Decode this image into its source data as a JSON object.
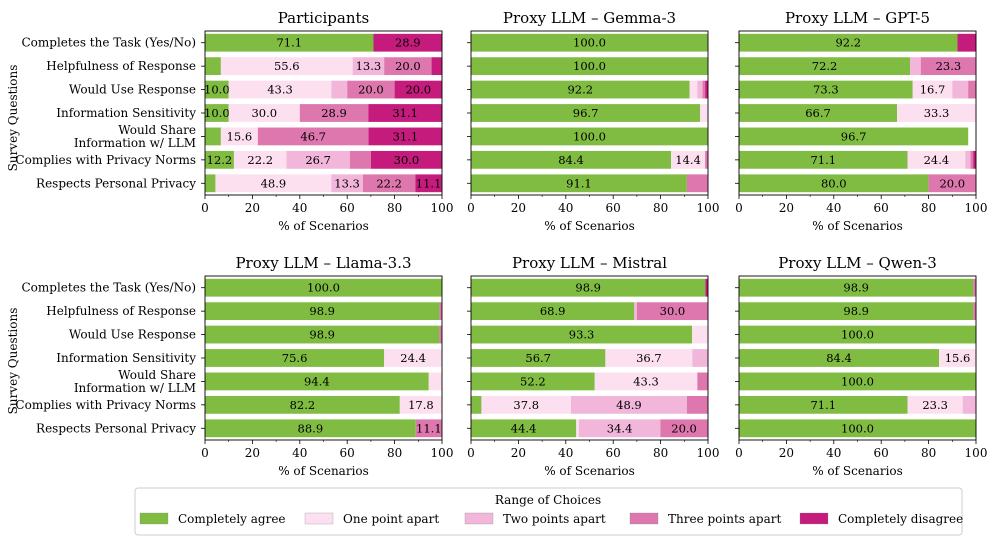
{
  "figure": {
    "legend_title": "Range of Choices",
    "ylabel": "Survey Questions",
    "colors": [
      "#7fbc41",
      "#fde0ef",
      "#f1b6da",
      "#de77ae",
      "#c51b7d"
    ]
  },
  "chart_data": [
    {
      "type": "bar",
      "orientation": "horizontal-stacked",
      "title": "Participants",
      "xlabel": "% of Scenarios",
      "ylabel": "Survey Questions",
      "xlim": [
        0,
        100
      ],
      "xticks": [
        "0",
        "20",
        "40",
        "60",
        "80",
        "100"
      ],
      "categories": [
        "Completes the Task (Yes/No)",
        "Helpfulness of Response",
        "Would Use Response",
        "Information Sensitivity",
        "Would Share\nInformation w/ LLM",
        "Complies with Privacy Norms",
        "Respects Personal Privacy"
      ],
      "series": [
        {
          "name": "Completely agree",
          "values": [
            71.1,
            6.7,
            10.0,
            10.0,
            6.7,
            12.2,
            4.4
          ]
        },
        {
          "name": "One point apart",
          "values": [
            0,
            55.6,
            43.3,
            30.0,
            15.6,
            22.2,
            48.9
          ]
        },
        {
          "name": "Two points apart",
          "values": [
            0,
            13.3,
            6.7,
            0,
            0,
            26.7,
            13.3
          ]
        },
        {
          "name": "Three points apart",
          "values": [
            0,
            20.0,
            20.0,
            28.9,
            46.7,
            8.9,
            22.2
          ]
        },
        {
          "name": "Completely disagree",
          "values": [
            28.9,
            4.4,
            20.0,
            31.1,
            31.1,
            30.0,
            11.1
          ]
        }
      ],
      "labels": [
        [
          "71.1",
          "",
          "",
          "",
          "28.9"
        ],
        [
          "",
          "55.6",
          "13.3",
          "20.0",
          ""
        ],
        [
          "10.0",
          "43.3",
          "",
          "20.0",
          "20.0"
        ],
        [
          "10.0",
          "30.0",
          "",
          "28.9",
          "31.1"
        ],
        [
          "",
          "15.6",
          "",
          "46.7",
          "31.1"
        ],
        [
          "12.2",
          "22.2",
          "26.7",
          "",
          "30.0"
        ],
        [
          "",
          "48.9",
          "13.3",
          "22.2",
          "11.1"
        ]
      ]
    },
    {
      "type": "bar",
      "orientation": "horizontal-stacked",
      "title": "Proxy LLM – Gemma-3",
      "xlabel": "% of Scenarios",
      "xlim": [
        0,
        100
      ],
      "xticks": [
        "0",
        "20",
        "40",
        "60",
        "80",
        "100"
      ],
      "categories": [
        "Completes the Task (Yes/No)",
        "Helpfulness of Response",
        "Would Use Response",
        "Information Sensitivity",
        "Would Share\nInformation w/ LLM",
        "Complies with Privacy Norms",
        "Respects Personal Privacy"
      ],
      "series": [
        {
          "name": "Completely agree",
          "values": [
            100.0,
            100.0,
            92.2,
            96.7,
            100.0,
            84.4,
            91.1
          ]
        },
        {
          "name": "One point apart",
          "values": [
            0,
            0,
            3.3,
            3.3,
            0,
            14.4,
            0
          ]
        },
        {
          "name": "Two points apart",
          "values": [
            0,
            0,
            2.2,
            0,
            0,
            0,
            0
          ]
        },
        {
          "name": "Three points apart",
          "values": [
            0,
            0,
            1.1,
            0,
            0,
            1.2,
            8.9
          ]
        },
        {
          "name": "Completely disagree",
          "values": [
            0,
            0,
            1.2,
            0,
            0,
            0,
            0
          ]
        }
      ],
      "labels": [
        [
          "100.0",
          "",
          "",
          "",
          ""
        ],
        [
          "100.0",
          "",
          "",
          "",
          ""
        ],
        [
          "92.2",
          "",
          "",
          "",
          ""
        ],
        [
          "96.7",
          "",
          "",
          "",
          ""
        ],
        [
          "100.0",
          "",
          "",
          "",
          ""
        ],
        [
          "84.4",
          "14.4",
          "",
          "",
          ""
        ],
        [
          "91.1",
          "",
          "",
          "",
          ""
        ]
      ]
    },
    {
      "type": "bar",
      "orientation": "horizontal-stacked",
      "title": "Proxy LLM – GPT-5",
      "xlabel": "% of Scenarios",
      "xlim": [
        0,
        100
      ],
      "xticks": [
        "0",
        "20",
        "40",
        "60",
        "80",
        "100"
      ],
      "categories": [
        "Completes the Task (Yes/No)",
        "Helpfulness of Response",
        "Would Use Response",
        "Information Sensitivity",
        "Would Share\nInformation w/ LLM",
        "Complies with Privacy Norms",
        "Respects Personal Privacy"
      ],
      "series": [
        {
          "name": "Completely agree",
          "values": [
            92.2,
            72.2,
            73.3,
            66.7,
            96.7,
            71.1,
            80.0
          ]
        },
        {
          "name": "One point apart",
          "values": [
            0,
            0,
            16.7,
            33.3,
            0,
            24.4,
            0
          ]
        },
        {
          "name": "Two points apart",
          "values": [
            0,
            4.5,
            6.7,
            0,
            0,
            2.2,
            0
          ]
        },
        {
          "name": "Three points apart",
          "values": [
            0,
            23.3,
            3.3,
            0,
            0,
            1.1,
            20.0
          ]
        },
        {
          "name": "Completely disagree",
          "values": [
            7.8,
            0,
            0,
            0,
            0,
            1.2,
            0
          ]
        }
      ],
      "labels": [
        [
          "92.2",
          "",
          "",
          "",
          ""
        ],
        [
          "72.2",
          "",
          "",
          "23.3",
          ""
        ],
        [
          "73.3",
          "16.7",
          "",
          "",
          ""
        ],
        [
          "66.7",
          "33.3",
          "",
          "",
          ""
        ],
        [
          "96.7",
          "",
          "",
          "",
          ""
        ],
        [
          "71.1",
          "24.4",
          "",
          "",
          ""
        ],
        [
          "80.0",
          "",
          "",
          "20.0",
          ""
        ]
      ]
    },
    {
      "type": "bar",
      "orientation": "horizontal-stacked",
      "title": "Proxy LLM – Llama-3.3",
      "xlabel": "% of Scenarios",
      "ylabel": "Survey Questions",
      "xlim": [
        0,
        100
      ],
      "xticks": [
        "0",
        "20",
        "40",
        "60",
        "80",
        "100"
      ],
      "categories": [
        "Completes the Task (Yes/No)",
        "Helpfulness of Response",
        "Would Use Response",
        "Information Sensitivity",
        "Would Share\nInformation w/ LLM",
        "Complies with Privacy Norms",
        "Respects Personal Privacy"
      ],
      "series": [
        {
          "name": "Completely agree",
          "values": [
            100.0,
            98.9,
            98.9,
            75.6,
            94.4,
            82.2,
            88.9
          ]
        },
        {
          "name": "One point apart",
          "values": [
            0,
            0,
            0,
            24.4,
            5.6,
            17.8,
            0
          ]
        },
        {
          "name": "Two points apart",
          "values": [
            0,
            0,
            0,
            0,
            0,
            0,
            0
          ]
        },
        {
          "name": "Three points apart",
          "values": [
            0,
            1.1,
            1.1,
            0,
            0,
            0,
            11.1
          ]
        },
        {
          "name": "Completely disagree",
          "values": [
            0,
            0,
            0,
            0,
            0,
            0,
            0
          ]
        }
      ],
      "labels": [
        [
          "100.0",
          "",
          "",
          "",
          ""
        ],
        [
          "98.9",
          "",
          "",
          "",
          ""
        ],
        [
          "98.9",
          "",
          "",
          "",
          ""
        ],
        [
          "75.6",
          "24.4",
          "",
          "",
          ""
        ],
        [
          "94.4",
          "",
          "",
          "",
          ""
        ],
        [
          "82.2",
          "17.8",
          "",
          "",
          ""
        ],
        [
          "88.9",
          "",
          "",
          "11.1",
          ""
        ]
      ]
    },
    {
      "type": "bar",
      "orientation": "horizontal-stacked",
      "title": "Proxy LLM – Mistral",
      "xlabel": "% of Scenarios",
      "xlim": [
        0,
        100
      ],
      "xticks": [
        "0",
        "20",
        "40",
        "60",
        "80",
        "100"
      ],
      "categories": [
        "Completes the Task (Yes/No)",
        "Helpfulness of Response",
        "Would Use Response",
        "Information Sensitivity",
        "Would Share\nInformation w/ LLM",
        "Complies with Privacy Norms",
        "Respects Personal Privacy"
      ],
      "series": [
        {
          "name": "Completely agree",
          "values": [
            98.9,
            68.9,
            93.3,
            56.7,
            52.2,
            4.4,
            44.4
          ]
        },
        {
          "name": "One point apart",
          "values": [
            0,
            0,
            6.7,
            36.7,
            43.3,
            37.8,
            1.1
          ]
        },
        {
          "name": "Two points apart",
          "values": [
            0,
            1.1,
            0,
            6.6,
            0,
            48.9,
            34.4
          ]
        },
        {
          "name": "Three points apart",
          "values": [
            0,
            30.0,
            0,
            0,
            4.5,
            8.9,
            20.0
          ]
        },
        {
          "name": "Completely disagree",
          "values": [
            1.1,
            0,
            0,
            0,
            0,
            0,
            0.1
          ]
        }
      ],
      "labels": [
        [
          "98.9",
          "",
          "",
          "",
          ""
        ],
        [
          "68.9",
          "",
          "",
          "30.0",
          ""
        ],
        [
          "93.3",
          "",
          "",
          "",
          ""
        ],
        [
          "56.7",
          "36.7",
          "",
          "",
          ""
        ],
        [
          "52.2",
          "43.3",
          "",
          "",
          ""
        ],
        [
          "",
          "37.8",
          "48.9",
          "",
          ""
        ],
        [
          "44.4",
          "",
          "34.4",
          "20.0",
          ""
        ]
      ]
    },
    {
      "type": "bar",
      "orientation": "horizontal-stacked",
      "title": "Proxy LLM – Qwen-3",
      "xlabel": "% of Scenarios",
      "xlim": [
        0,
        100
      ],
      "xticks": [
        "0",
        "20",
        "40",
        "60",
        "80",
        "100"
      ],
      "categories": [
        "Completes the Task (Yes/No)",
        "Helpfulness of Response",
        "Would Use Response",
        "Information Sensitivity",
        "Would Share\nInformation w/ LLM",
        "Complies with Privacy Norms",
        "Respects Personal Privacy"
      ],
      "series": [
        {
          "name": "Completely agree",
          "values": [
            98.9,
            98.9,
            100.0,
            84.4,
            100.0,
            71.1,
            100.0
          ]
        },
        {
          "name": "One point apart",
          "values": [
            0,
            0,
            0,
            15.6,
            0,
            23.3,
            0
          ]
        },
        {
          "name": "Two points apart",
          "values": [
            0,
            0,
            0,
            0,
            0,
            5.6,
            0
          ]
        },
        {
          "name": "Three points apart",
          "values": [
            1.1,
            1.1,
            0,
            0,
            0,
            0,
            0
          ]
        },
        {
          "name": "Completely disagree",
          "values": [
            0,
            0,
            0,
            0,
            0,
            0,
            0
          ]
        }
      ],
      "labels": [
        [
          "98.9",
          "",
          "",
          "",
          ""
        ],
        [
          "98.9",
          "",
          "",
          "",
          ""
        ],
        [
          "100.0",
          "",
          "",
          "",
          ""
        ],
        [
          "84.4",
          "15.6",
          "",
          "",
          ""
        ],
        [
          "100.0",
          "",
          "",
          "",
          ""
        ],
        [
          "71.1",
          "23.3",
          "",
          "",
          ""
        ],
        [
          "100.0",
          "",
          "",
          "",
          ""
        ]
      ]
    }
  ],
  "legend": {
    "title": "Range of Choices",
    "items": [
      "Completely agree",
      "One point apart",
      "Two points apart",
      "Three points apart",
      "Completely disagree"
    ]
  }
}
